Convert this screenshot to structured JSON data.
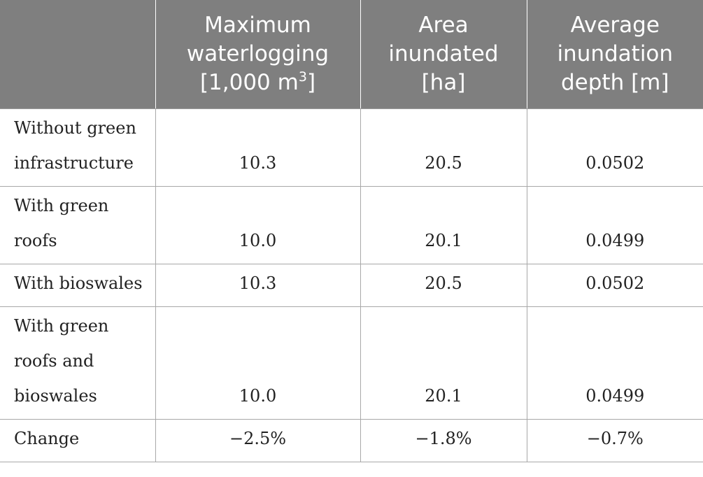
{
  "table": {
    "headers": [
      {
        "lines": []
      },
      {
        "lines": [
          "Maximum",
          "waterlogging"
        ],
        "unit_prefix": "[1,000 m",
        "unit_sup": "3",
        "unit_suffix": "]"
      },
      {
        "lines": [
          "Area",
          "inundated",
          "[ha]"
        ]
      },
      {
        "lines": [
          "Average",
          "inundation",
          "depth [m]"
        ]
      }
    ],
    "rows": [
      {
        "label_lines": [
          "Without green",
          "infrastructure"
        ],
        "max_waterlogging": "10.3",
        "area_inundated": "20.5",
        "avg_depth": "0.0502"
      },
      {
        "label_lines": [
          "With green",
          "roofs"
        ],
        "max_waterlogging": "10.0",
        "area_inundated": "20.1",
        "avg_depth": "0.0499"
      },
      {
        "label_lines": [
          "With bioswales"
        ],
        "max_waterlogging": "10.3",
        "area_inundated": "20.5",
        "avg_depth": "0.0502"
      },
      {
        "label_lines": [
          "With green",
          "roofs and",
          "bioswales"
        ],
        "max_waterlogging": "10.0",
        "area_inundated": "20.1",
        "avg_depth": "0.0499"
      },
      {
        "label_lines": [
          "Change"
        ],
        "max_waterlogging": "−2.5%",
        "area_inundated": "−1.8%",
        "avg_depth": "−0.7%"
      }
    ]
  },
  "colors": {
    "header_background": "#7f7f7f",
    "header_text": "#ffffff",
    "grid_lines": "#a8a8a8"
  }
}
